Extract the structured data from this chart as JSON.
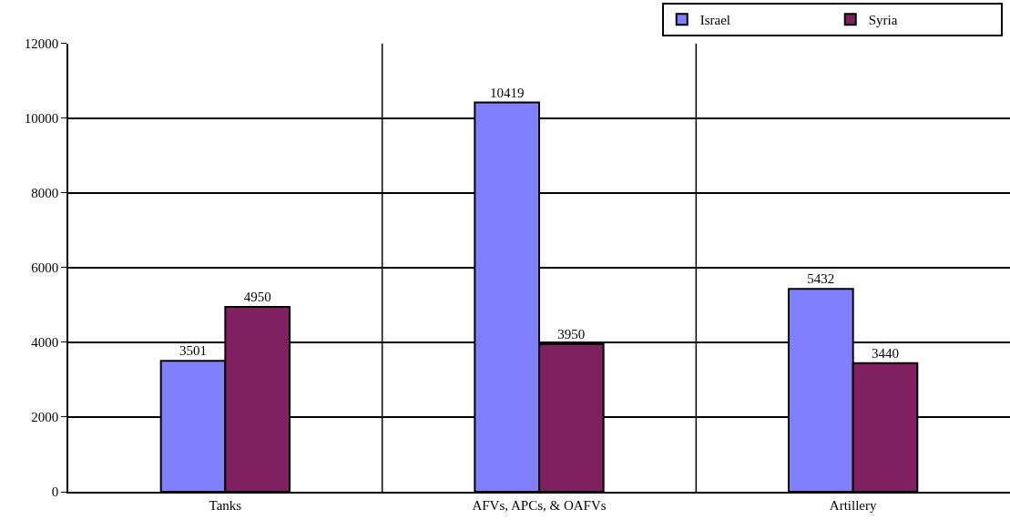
{
  "chart_data": {
    "type": "bar",
    "categories": [
      "Tanks",
      "AFVs, APCs, & OAFVs",
      "Artillery"
    ],
    "series": [
      {
        "name": "Israel",
        "color": "#8080ff",
        "values": [
          3501,
          10419,
          5432
        ]
      },
      {
        "name": "Syria",
        "color": "#802060",
        "values": [
          4950,
          3950,
          3440
        ]
      }
    ],
    "ylim": [
      0,
      12000
    ],
    "yticks": [
      0,
      2000,
      4000,
      6000,
      8000,
      10000,
      12000
    ],
    "grid": true,
    "legend": "top right",
    "data_labels": true
  }
}
